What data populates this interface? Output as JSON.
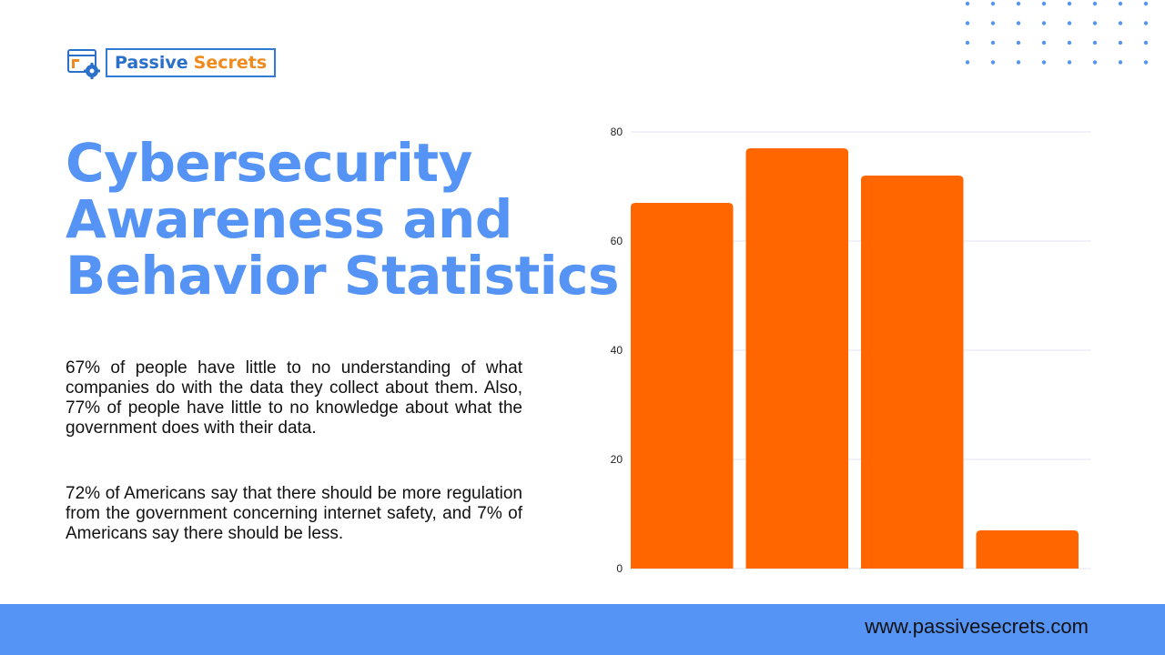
{
  "logo": {
    "word1": "Passive",
    "word2": "Secrets"
  },
  "colors": {
    "accent": "#5594f5",
    "bar": "#ff6600",
    "logo_blue": "#2a6fc9",
    "logo_orange": "#f08a1c"
  },
  "title": {
    "line1": "Cybersecurity",
    "line2": "Awareness and",
    "line3": "Behavior Statistics"
  },
  "paragraphs": {
    "p1": "67% of people have little to no understanding of what companies do with the data they collect about them. Also, 77% of people have little to no knowledge about what the government does with their data.",
    "p2": "72% of Americans say that there should be more regulation from the government concerning internet safety, and 7% of Americans say there should be less."
  },
  "chart_data": {
    "type": "bar",
    "categories": [
      "",
      "",
      "",
      ""
    ],
    "values": [
      67,
      77,
      72,
      7
    ],
    "ylim": [
      0,
      80
    ],
    "yticks": [
      "0",
      "20",
      "40",
      "60",
      "80"
    ],
    "grid": true,
    "title": "",
    "xlabel": "",
    "ylabel": ""
  },
  "footer": {
    "url": "www.passivesecrets.com"
  }
}
